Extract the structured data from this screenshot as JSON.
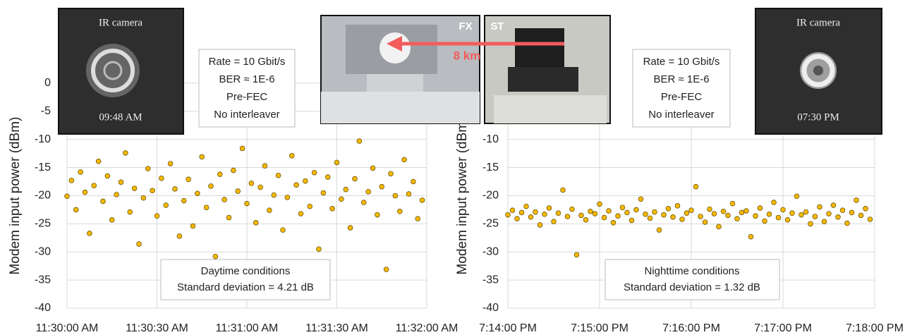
{
  "chart_data": [
    {
      "type": "scatter",
      "y_label": "Modem input power (dBm)",
      "color": "#f5b800",
      "grid": true,
      "x": [
        41400,
        41401.5,
        41403,
        41404.5,
        41406,
        41407.5,
        41409,
        41410.5,
        41412,
        41413.5,
        41415,
        41416.5,
        41418,
        41419.5,
        41421,
        41422.5,
        41424,
        41425.5,
        41427,
        41428.5,
        41430,
        41431.5,
        41433,
        41434.5,
        41436,
        41437.5,
        41439,
        41440.5,
        41442,
        41443.5,
        41445,
        41446.5,
        41448,
        41449.5,
        41451,
        41452.5,
        41454,
        41455.5,
        41457,
        41458.5,
        41460,
        41461.5,
        41463,
        41464.5,
        41466,
        41467.5,
        41469,
        41470.5,
        41472,
        41473.5,
        41475,
        41476.5,
        41478,
        41479.5,
        41481,
        41482.5,
        41484,
        41485.5,
        41487,
        41488.5,
        41490,
        41491.5,
        41493,
        41494.5,
        41496,
        41497.5,
        41499,
        41500.5,
        41502,
        41503.5,
        41505,
        41506.5,
        41508,
        41509.5,
        41511,
        41512.5,
        41514,
        41515.5,
        41517,
        41518.5
      ],
      "values": [
        -20.1,
        -17.3,
        -22.5,
        -15.8,
        -19.4,
        -26.7,
        -18.2,
        -13.9,
        -21.0,
        -16.5,
        -24.3,
        -19.8,
        -17.6,
        -12.4,
        -22.9,
        -18.7,
        -28.6,
        -20.4,
        -15.2,
        -19.1,
        -23.6,
        -16.9,
        -21.7,
        -14.3,
        -18.8,
        -27.2,
        -20.9,
        -17.1,
        -25.4,
        -19.6,
        -13.1,
        -22.1,
        -18.3,
        -30.8,
        -16.2,
        -20.7,
        -23.9,
        -15.5,
        -19.2,
        -11.6,
        -21.4,
        -17.8,
        -24.8,
        -18.5,
        -14.7,
        -22.6,
        -19.9,
        -16.4,
        -26.1,
        -20.3,
        -12.9,
        -18.1,
        -23.2,
        -17.4,
        -21.9,
        -15.9,
        -29.5,
        -19.5,
        -16.7,
        -22.3,
        -14.1,
        -20.6,
        -18.9,
        -25.7,
        -17.0,
        -10.3,
        -21.2,
        -19.3,
        -15.1,
        -23.4,
        -18.4,
        -33.1,
        -16.1,
        -20.0,
        -22.8,
        -13.6,
        -19.7,
        -17.5,
        -24.1,
        -20.8
      ],
      "xlim": [
        41400,
        41520
      ],
      "xticks": [
        {
          "value": 41400,
          "label": "11:30:00 AM"
        },
        {
          "value": 41430,
          "label": "11:30:30 AM"
        },
        {
          "value": 41460,
          "label": "11:31:00 AM"
        },
        {
          "value": 41490,
          "label": "11:31:30 AM"
        },
        {
          "value": 41520,
          "label": "11:32:00 AM"
        }
      ],
      "ylim": [
        -40,
        5
      ],
      "yticks": [
        -40,
        -35,
        -30,
        -25,
        -20,
        -15,
        -10,
        -5,
        0
      ],
      "annotations": [
        "Daytime conditions",
        "Standard deviation = 4.21 dB"
      ],
      "settings_box": [
        "Rate = 10 Gbit/s",
        "BER ≈ 1E-6",
        "Pre-FEC",
        "No interleaver"
      ],
      "inset": {
        "title": "IR camera",
        "time": "09:48 AM"
      }
    },
    {
      "type": "scatter",
      "y_label": "Modem input power (dBm)",
      "color": "#f5b800",
      "grid": true,
      "x": [
        69240,
        69243,
        69246,
        69249,
        69252,
        69255,
        69258,
        69261,
        69264,
        69267,
        69270,
        69273,
        69276,
        69279,
        69282,
        69285,
        69288,
        69291,
        69294,
        69297,
        69300,
        69303,
        69306,
        69309,
        69312,
        69315,
        69318,
        69321,
        69324,
        69327,
        69330,
        69333,
        69336,
        69339,
        69342,
        69345,
        69348,
        69351,
        69354,
        69357,
        69360,
        69363,
        69366,
        69369,
        69372,
        69375,
        69378,
        69381,
        69384,
        69387,
        69390,
        69393,
        69396,
        69399,
        69402,
        69405,
        69408,
        69411,
        69414,
        69417,
        69420,
        69423,
        69426,
        69429,
        69432,
        69435,
        69438,
        69441,
        69444,
        69447,
        69450,
        69453,
        69456,
        69459,
        69462,
        69465,
        69468,
        69471,
        69474,
        69477
      ],
      "values": [
        -23.4,
        -22.6,
        -24.1,
        -23.0,
        -21.9,
        -23.8,
        -22.9,
        -25.2,
        -23.3,
        -22.2,
        -24.6,
        -23.1,
        -19.0,
        -23.7,
        -22.4,
        -30.5,
        -23.5,
        -24.3,
        -22.8,
        -23.2,
        -21.5,
        -23.9,
        -22.7,
        -24.8,
        -23.6,
        -22.1,
        -23.0,
        -24.4,
        -22.5,
        -20.6,
        -23.3,
        -24.0,
        -22.9,
        -26.1,
        -23.4,
        -22.3,
        -23.8,
        -21.8,
        -24.2,
        -23.1,
        -22.6,
        -18.4,
        -23.7,
        -24.7,
        -22.4,
        -23.2,
        -25.5,
        -22.8,
        -23.5,
        -21.4,
        -24.1,
        -23.0,
        -22.7,
        -27.3,
        -23.6,
        -22.2,
        -24.5,
        -23.3,
        -21.2,
        -23.9,
        -22.5,
        -24.3,
        -23.1,
        -20.1,
        -23.4,
        -22.9,
        -25.0,
        -23.7,
        -22.0,
        -24.6,
        -23.2,
        -21.7,
        -23.8,
        -22.6,
        -24.9,
        -23.0,
        -20.8,
        -23.5,
        -22.3,
        -24.2
      ],
      "xlim": [
        69240,
        69480
      ],
      "xticks": [
        {
          "value": 69240,
          "label": "7:14:00 PM"
        },
        {
          "value": 69300,
          "label": "7:15:00 PM"
        },
        {
          "value": 69360,
          "label": "7:16:00 PM"
        },
        {
          "value": 69420,
          "label": "7:17:00 PM"
        },
        {
          "value": 69480,
          "label": "7:18:00 PM"
        }
      ],
      "ylim": [
        -40,
        5
      ],
      "yticks": [
        -40,
        -35,
        -30,
        -25,
        -20,
        -15,
        -10
      ],
      "annotations": [
        "Nighttime conditions",
        "Standard deviation = 1.32 dB"
      ],
      "settings_box": [
        "Rate = 10 Gbit/s",
        "BER ≈ 1E-6",
        "Pre-FEC",
        "No interleaver"
      ],
      "inset": {
        "title": "IR camera",
        "time": "07:30 PM"
      }
    }
  ],
  "photos": {
    "left_label": "FX",
    "right_label": "ST",
    "distance": "8 km"
  }
}
